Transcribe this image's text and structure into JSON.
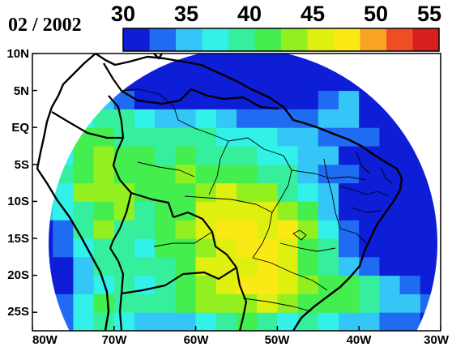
{
  "title": "02 / 2002",
  "colorbar": {
    "ticks": [
      "30",
      "35",
      "40",
      "45",
      "50",
      "55"
    ],
    "min": 30,
    "max": 55,
    "colors": [
      "#0d1ed6",
      "#1f6bf1",
      "#33c6f6",
      "#31f1e8",
      "#36ef9d",
      "#44ee4f",
      "#92f020",
      "#dff010",
      "#fbe915",
      "#f8a322",
      "#ef4e25",
      "#d71d1d"
    ]
  },
  "map": {
    "type": "gridded field over South America",
    "lon_ticks": [
      "80W",
      "70W",
      "60W",
      "50W",
      "40W",
      "30W"
    ],
    "lat_ticks": [
      "10N",
      "5N",
      "EQ",
      "5S",
      "10S",
      "15S",
      "20S",
      "25S"
    ],
    "lon_range": [
      -80,
      -30
    ],
    "lat_range": [
      -27.5,
      10
    ],
    "domain": "circular region centered near 55W, 12S; outside shown white",
    "pattern": "values ~30-33 (dark blue) over the northern, western and eastern ocean margins; ~37-40 (cyan) over the Amazon and Andes foothills; ~41-44 (green) over central Brazil, Paraguay and southern Brazil; maximum ~45 (yellow-green) near 47W, 15S"
  }
}
